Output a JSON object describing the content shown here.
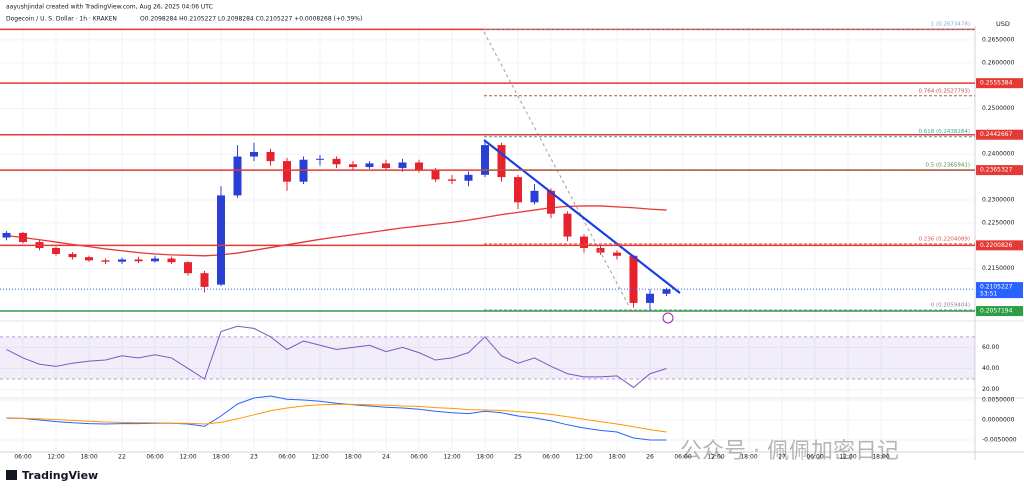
{
  "header": {
    "author_line": "aayushjindal created with TradingView.com, Aug 26, 2025 04:06 UTC",
    "symbol_line": "Dogecoin / U. S. Dollar · 1h · KRAKEN",
    "ohlc": "O0.2098284 H0.2105227 L0.2098284 C0.2105227 +0.0008268 (+0.39%)"
  },
  "chart_data": [
    {
      "type": "candlestick",
      "currency": "USD",
      "x_labels": [
        "06:00",
        "12:00",
        "18:00",
        "22",
        "06:00",
        "12:00",
        "18:00",
        "23",
        "06:00",
        "12:00",
        "18:00",
        "24",
        "06:00",
        "12:00",
        "18:00",
        "25",
        "06:00",
        "12:00",
        "18:00",
        "26",
        "06:00",
        "12:00",
        "18:00",
        "27",
        "06:00",
        "12:00",
        "18:00"
      ],
      "open": [
        0.2218,
        0.2228,
        0.2208,
        0.2195,
        0.2182,
        0.2175,
        0.2168,
        0.2165,
        0.217,
        0.2166,
        0.2172,
        0.2164,
        0.214,
        0.2115,
        0.231,
        0.2395,
        0.2405,
        0.2385,
        0.234,
        0.2388,
        0.239,
        0.2378,
        0.2372,
        0.238,
        0.237,
        0.2382,
        0.2365,
        0.2345,
        0.2342,
        0.2355,
        0.242,
        0.235,
        0.2295,
        0.232,
        0.227,
        0.222,
        0.2195,
        0.2185,
        0.2178,
        0.2075,
        0.2095
      ],
      "high": [
        0.2232,
        0.223,
        0.2212,
        0.2198,
        0.2186,
        0.2178,
        0.2172,
        0.2174,
        0.2176,
        0.2178,
        0.2176,
        0.2166,
        0.2145,
        0.233,
        0.242,
        0.2425,
        0.2412,
        0.2392,
        0.2395,
        0.2398,
        0.2395,
        0.2385,
        0.2385,
        0.2388,
        0.239,
        0.2388,
        0.237,
        0.2355,
        0.2362,
        0.2432,
        0.2425,
        0.2355,
        0.2335,
        0.2325,
        0.2275,
        0.2225,
        0.22,
        0.219,
        0.218,
        0.2105,
        0.2108
      ],
      "low": [
        0.2212,
        0.2205,
        0.219,
        0.2178,
        0.217,
        0.2165,
        0.216,
        0.216,
        0.2162,
        0.2163,
        0.216,
        0.2135,
        0.2098,
        0.2112,
        0.2305,
        0.2385,
        0.2375,
        0.232,
        0.2335,
        0.2375,
        0.237,
        0.2365,
        0.2368,
        0.2365,
        0.2362,
        0.236,
        0.234,
        0.2335,
        0.233,
        0.235,
        0.234,
        0.228,
        0.229,
        0.226,
        0.221,
        0.2185,
        0.218,
        0.217,
        0.2065,
        0.206,
        0.209
      ],
      "close": [
        0.2228,
        0.2208,
        0.2195,
        0.2182,
        0.2175,
        0.2168,
        0.2165,
        0.217,
        0.2166,
        0.2172,
        0.2164,
        0.214,
        0.211,
        0.231,
        0.2395,
        0.2405,
        0.2385,
        0.234,
        0.2388,
        0.239,
        0.2378,
        0.2372,
        0.238,
        0.237,
        0.2382,
        0.2365,
        0.2345,
        0.2342,
        0.2355,
        0.242,
        0.235,
        0.2295,
        0.232,
        0.227,
        0.222,
        0.2195,
        0.2185,
        0.2178,
        0.2075,
        0.2095,
        0.2105
      ],
      "up_color": "#2a3fd6",
      "down_color": "#e5222d",
      "ma_values": [
        0.2222,
        0.2218,
        0.2213,
        0.2208,
        0.2203,
        0.2198,
        0.2193,
        0.2189,
        0.2185,
        0.2182,
        0.218,
        0.2179,
        0.2178,
        0.218,
        0.2184,
        0.219,
        0.2196,
        0.2202,
        0.2208,
        0.2214,
        0.2219,
        0.2224,
        0.2229,
        0.2234,
        0.2239,
        0.2243,
        0.2247,
        0.2251,
        0.2256,
        0.2262,
        0.2268,
        0.2273,
        0.2278,
        0.2283,
        0.2286,
        0.2287,
        0.2287,
        0.2285,
        0.2283,
        0.228,
        0.2278
      ],
      "ma_color": "#e53935",
      "ylim": [
        0.2042,
        0.2676
      ],
      "yticks": [
        {
          "value": 0.265,
          "label": "0.2650000"
        },
        {
          "value": 0.26,
          "label": "0.2600000"
        },
        {
          "value": 0.25,
          "label": "0.2500000"
        },
        {
          "value": 0.24,
          "label": "0.2400000"
        },
        {
          "value": 0.23,
          "label": "0.2300000"
        },
        {
          "value": 0.225,
          "label": "0.2250000"
        },
        {
          "value": 0.215,
          "label": "0.2150000"
        }
      ],
      "grid": true,
      "levels": [
        {
          "value": 0.2673,
          "color": "#e53935",
          "show_label": false
        },
        {
          "value": 0.2555384,
          "color": "#e53935",
          "show_label": true
        },
        {
          "value": 0.2442667,
          "color": "#e53935",
          "show_label": true
        },
        {
          "value": 0.2365327,
          "color": "#e53935",
          "show_label": true
        },
        {
          "value": 0.2200826,
          "color": "#e53935",
          "show_label": true
        },
        {
          "value": 0.2057194,
          "color": "#2e9e44",
          "show_label": true
        }
      ],
      "fib_levels": [
        {
          "value": 0.2673478,
          "label": "1 (0.2673478)",
          "color": "#7fa7c9"
        },
        {
          "value": 0.2527793,
          "label": "0.764 (0.2527793)",
          "color": "#c0504d"
        },
        {
          "value": 0.2438284,
          "label": "0.618 (0.2438284)",
          "color": "#3aa59a"
        },
        {
          "value": 0.2365941,
          "label": "0.5 (0.2365941)",
          "color": "#4c8a4c"
        },
        {
          "value": 0.2204089,
          "label": "0.236 (0.2204089)",
          "color": "#d9534f"
        },
        {
          "value": 0.2059404,
          "label": "0 (0.2059404)",
          "color": "#888888"
        }
      ],
      "current_price": {
        "value": 0.2105227,
        "countdown": "53:51",
        "color": "#2962ff"
      }
    },
    {
      "type": "line",
      "values": [
        58,
        50,
        44,
        42,
        45,
        47,
        48,
        52,
        50,
        53,
        50,
        40,
        30,
        75,
        80,
        78,
        70,
        58,
        66,
        62,
        58,
        60,
        62,
        56,
        60,
        55,
        48,
        50,
        55,
        70,
        52,
        45,
        50,
        42,
        35,
        32,
        32,
        33,
        22,
        35,
        40
      ],
      "color": "#7e57c2",
      "band": [
        30,
        70
      ],
      "ylim": [
        12,
        85
      ],
      "yticks": [
        {
          "value": 60,
          "label": "60.00"
        },
        {
          "value": 40,
          "label": "40.00"
        },
        {
          "value": 20,
          "label": "20.00"
        }
      ]
    },
    {
      "type": "line",
      "series": [
        {
          "color": "#2962ff",
          "values": [
            0.0005,
            0.0004,
            0,
            -0.0004,
            -0.0007,
            -0.0009,
            -0.001,
            -0.0009,
            -0.0009,
            -0.0008,
            -0.0008,
            -0.001,
            -0.0016,
            0.001,
            0.004,
            0.0055,
            0.006,
            0.0052,
            0.005,
            0.0047,
            0.0042,
            0.0038,
            0.0035,
            0.0032,
            0.003,
            0.0027,
            0.0022,
            0.0018,
            0.0016,
            0.0022,
            0.0018,
            0.001,
            0.0005,
            -0.0002,
            -0.0012,
            -0.002,
            -0.0026,
            -0.003,
            -0.0045,
            -0.005,
            -0.005
          ]
        },
        {
          "color": "#ff9800",
          "values": [
            0.0004,
            0.0004,
            0.0003,
            0.0001,
            -0.0001,
            -0.0003,
            -0.0005,
            -0.0006,
            -0.0007,
            -0.0007,
            -0.0008,
            -0.0008,
            -0.001,
            -0.0006,
            0.0003,
            0.0013,
            0.0023,
            0.003,
            0.0035,
            0.0038,
            0.0039,
            0.0039,
            0.0038,
            0.0037,
            0.0035,
            0.0034,
            0.0031,
            0.0029,
            0.0026,
            0.0025,
            0.0024,
            0.0021,
            0.0018,
            0.0014,
            0.0008,
            0.0002,
            -0.0004,
            -0.001,
            -0.0017,
            -0.0024,
            -0.003
          ]
        }
      ],
      "ylim": [
        -0.008,
        0.0055
      ],
      "yticks": [
        {
          "value": 0.005,
          "label": "0.0050000"
        },
        {
          "value": 0,
          "label": "0.0000000"
        },
        {
          "value": -0.005,
          "label": "-0.0050000"
        }
      ]
    }
  ],
  "footer": {
    "brand": "TradingView",
    "watermark": "公众号 · 佩佩加密日记"
  }
}
